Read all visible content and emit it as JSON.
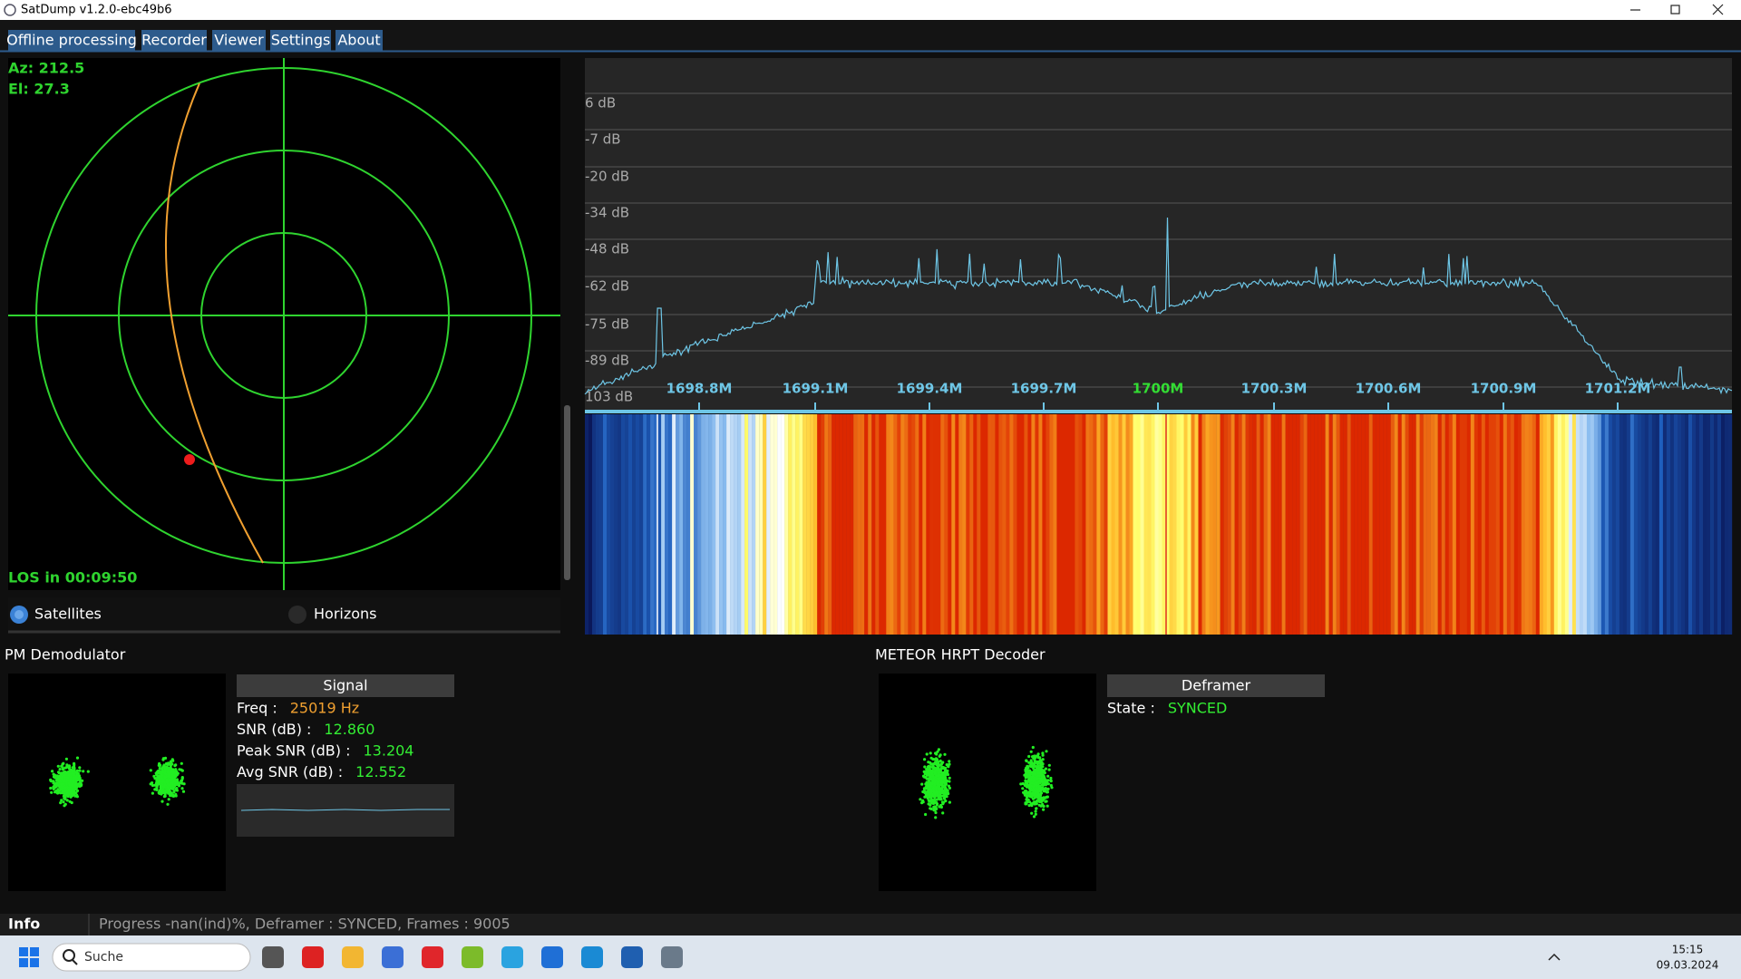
{
  "window": {
    "title": "SatDump v1.2.0-ebc49b6"
  },
  "menu": {
    "tabs": [
      "Offline processing",
      "Recorder",
      "Viewer",
      "Settings",
      "About"
    ]
  },
  "tracking": {
    "azimuth": "Az: 212.5",
    "elevation": "El: 27.3",
    "los": "LOS in 00:09:50",
    "options": [
      "Satellites",
      "Horizons"
    ]
  },
  "spectrum": {
    "db_labels": [
      "6 dB",
      "-7 dB",
      "-20 dB",
      "-34 dB",
      "-48 dB",
      "-62 dB",
      "-75 dB",
      "-89 dB",
      "103 dB"
    ],
    "freq_labels": [
      "1698.8M",
      "1699.1M",
      "1699.4M",
      "1699.7M",
      "1700M",
      "1700.3M",
      "1700.6M",
      "1700.9M",
      "1701.2M"
    ]
  },
  "demodulator": {
    "title": "PM Demodulator",
    "header": "Signal",
    "fields": [
      {
        "label": "Freq :",
        "value": "25019 Hz"
      },
      {
        "label": "SNR (dB) :",
        "value": "12.860"
      },
      {
        "label": "Peak SNR (dB) :",
        "value": "13.204"
      },
      {
        "label": "Avg SNR (dB) :",
        "value": "12.552"
      }
    ]
  },
  "decoder": {
    "title": "METEOR HRPT Decoder",
    "header": "Deframer",
    "fields": [
      {
        "label": "State :",
        "value": "SYNCED"
      }
    ]
  },
  "info": {
    "label": "Info",
    "status": "Progress -nan(ind)%, Deframer : SYNCED, Frames : 9005"
  },
  "taskbar": {
    "search": "Suche",
    "time": "15:15",
    "date": "09.03.2024"
  }
}
